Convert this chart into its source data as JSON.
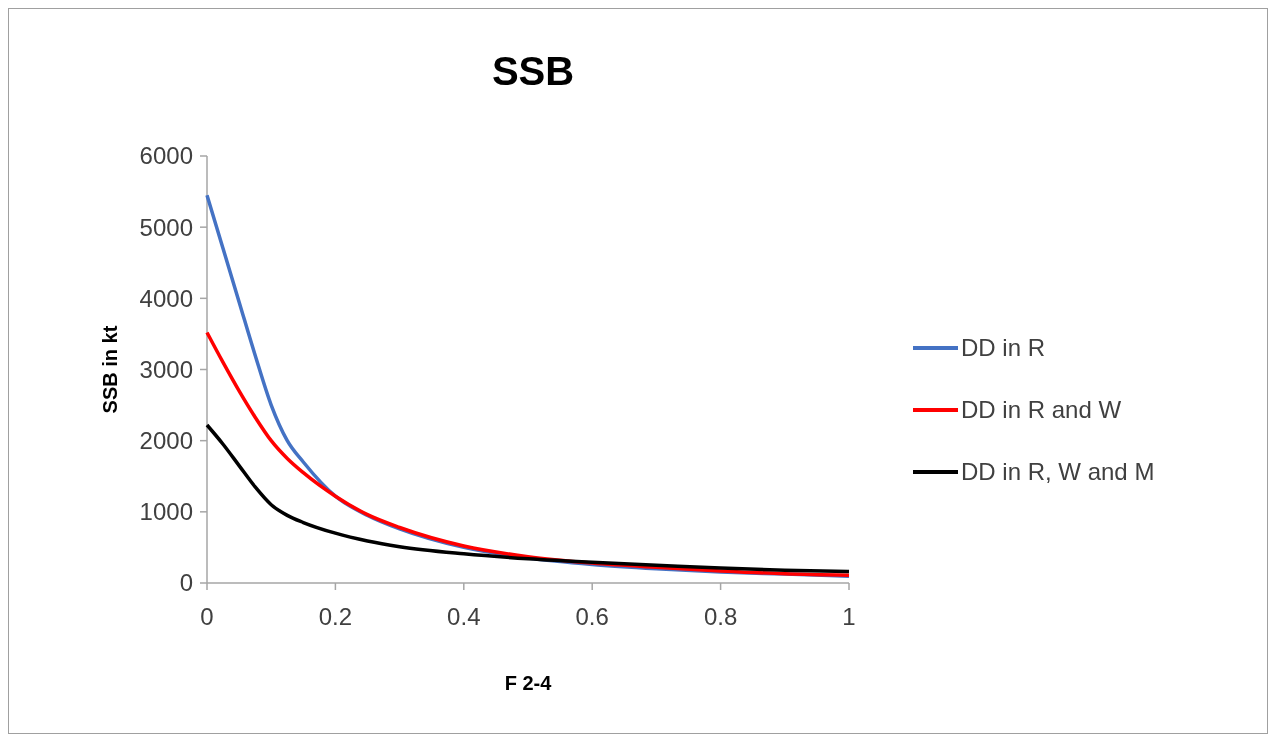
{
  "chart_data": {
    "type": "line",
    "title": "SSB",
    "xlabel": "F 2-4",
    "ylabel": "SSB in kt",
    "xlim": [
      0,
      1
    ],
    "xticks": [
      0,
      0.2,
      0.4,
      0.6,
      0.8,
      1
    ],
    "ylim": [
      0,
      6000
    ],
    "yticks": [
      0,
      1000,
      2000,
      3000,
      4000,
      5000,
      6000
    ],
    "grid": false,
    "legend": "right",
    "marker": "none",
    "line_style": "solid",
    "x": [
      0,
      0.025,
      0.05,
      0.075,
      0.1,
      0.125,
      0.15,
      0.2,
      0.25,
      0.3,
      0.4,
      0.5,
      0.6,
      0.7,
      0.8,
      0.9,
      1
    ],
    "series": [
      {
        "name": "DD in R",
        "color": "#4472c4",
        "values": [
          5450,
          4700,
          3950,
          3200,
          2500,
          2000,
          1700,
          1220,
          950,
          760,
          500,
          350,
          260,
          200,
          155,
          125,
          95
        ]
      },
      {
        "name": "DD in R and W",
        "color": "#ff0000",
        "values": [
          3520,
          3100,
          2700,
          2330,
          2000,
          1750,
          1550,
          1220,
          960,
          780,
          520,
          370,
          280,
          220,
          170,
          130,
          110
        ]
      },
      {
        "name": "DD in R, W and M",
        "color": "#000000",
        "values": [
          2220,
          1950,
          1650,
          1350,
          1100,
          950,
          850,
          700,
          590,
          510,
          410,
          340,
          290,
          250,
          210,
          180,
          160
        ]
      }
    ]
  }
}
